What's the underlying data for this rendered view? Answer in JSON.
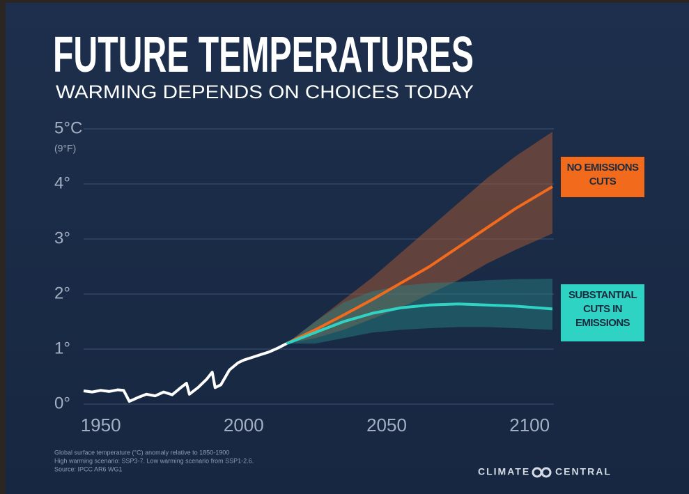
{
  "chart_data": {
    "type": "line",
    "title": "FUTURE TEMPERATURES",
    "subtitle": "WARMING DEPENDS ON CHOICES TODAY",
    "y_unit_note": "(9°F)",
    "xlim": [
      1944,
      2108
    ],
    "xticks": [
      1950,
      2000,
      2050,
      2100
    ],
    "ylim": [
      0,
      5
    ],
    "yticks": [
      {
        "value": 0,
        "label": "0°"
      },
      {
        "value": 1,
        "label": "1°"
      },
      {
        "value": 2,
        "label": "2°"
      },
      {
        "value": 3,
        "label": "3°"
      },
      {
        "value": 4,
        "label": "4°"
      },
      {
        "value": 5,
        "label": "5°C"
      }
    ],
    "grid": true,
    "series": [
      {
        "color": "#ffffff",
        "x": [
          1944,
          1947,
          1950,
          1953,
          1956,
          1958,
          1960,
          1963,
          1966,
          1969,
          1972,
          1975,
          1978,
          1980,
          1981,
          1984,
          1987,
          1989,
          1990,
          1992,
          1995,
          1998,
          2000,
          2003,
          2006,
          2009,
          2012,
          2015
        ],
        "values": [
          0.24,
          0.22,
          0.25,
          0.23,
          0.26,
          0.25,
          0.05,
          0.12,
          0.18,
          0.15,
          0.22,
          0.17,
          0.3,
          0.38,
          0.18,
          0.3,
          0.45,
          0.58,
          0.3,
          0.35,
          0.62,
          0.75,
          0.8,
          0.85,
          0.9,
          0.95,
          1.02,
          1.1
        ]
      },
      {
        "name": "NO EMISSIONS CUTS",
        "color": "#f26b1d",
        "band_color": "rgba(170,90,50,0.5)",
        "x": [
          2015,
          2025,
          2035,
          2045,
          2055,
          2065,
          2075,
          2085,
          2095,
          2108
        ],
        "values": [
          1.1,
          1.35,
          1.62,
          1.9,
          2.2,
          2.5,
          2.85,
          3.2,
          3.55,
          3.95
        ],
        "upper": [
          1.1,
          1.5,
          1.9,
          2.3,
          2.75,
          3.2,
          3.65,
          4.1,
          4.5,
          4.95
        ],
        "lower": [
          1.1,
          1.2,
          1.35,
          1.55,
          1.75,
          2.0,
          2.25,
          2.55,
          2.8,
          3.1
        ]
      },
      {
        "name": "SUBSTANTIAL CUTS IN EMISSIONS",
        "color": "#2fd3c3",
        "band_color": "rgba(40,135,135,0.45)",
        "x": [
          2015,
          2025,
          2035,
          2045,
          2055,
          2065,
          2075,
          2085,
          2095,
          2108
        ],
        "values": [
          1.1,
          1.3,
          1.5,
          1.65,
          1.75,
          1.8,
          1.82,
          1.8,
          1.78,
          1.73
        ],
        "upper": [
          1.1,
          1.5,
          1.85,
          2.05,
          2.15,
          2.2,
          2.22,
          2.25,
          2.27,
          2.28
        ],
        "lower": [
          1.1,
          1.1,
          1.2,
          1.3,
          1.35,
          1.38,
          1.4,
          1.4,
          1.38,
          1.35
        ]
      }
    ],
    "footnotes": [
      "Global surface temperature (°C) anomaly relative to 1850-1900",
      "High warming scenario: SSP3-7. Low warming scenario from SSP1-2.6.",
      "Source: IPCC AR6 WG1"
    ],
    "brand": [
      "CLIMATE",
      "CENTRAL"
    ]
  }
}
